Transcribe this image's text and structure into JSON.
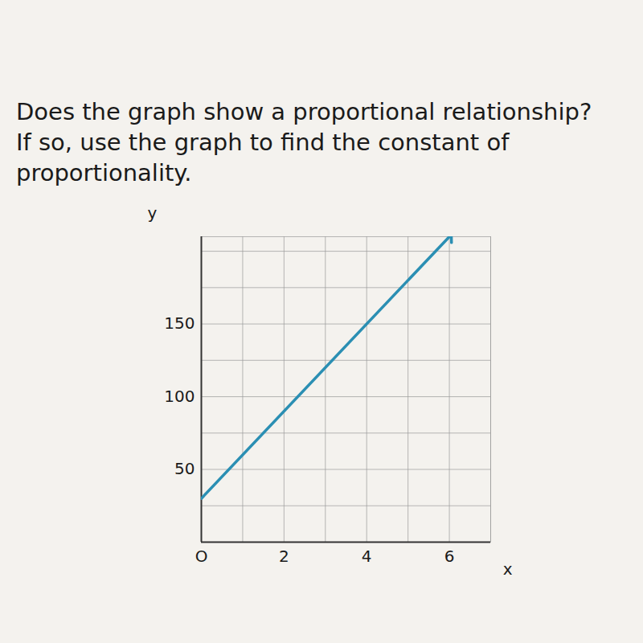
{
  "chart_data": {
    "type": "line",
    "title": "Does the graph show a proportional relationship? If so, use the graph to find the constant of proportionality.",
    "x_label": "x",
    "y_label": "y",
    "x": [
      0,
      6
    ],
    "values": [
      30,
      210
    ],
    "color": "#2b8fb3",
    "marker": "arrow",
    "xlim": [
      0,
      7
    ],
    "ylim": [
      0,
      210
    ],
    "xticks": [
      {
        "value": 0,
        "label": "O"
      },
      2,
      4,
      6
    ],
    "yticks": [
      50,
      100,
      150
    ],
    "grid": true
  }
}
